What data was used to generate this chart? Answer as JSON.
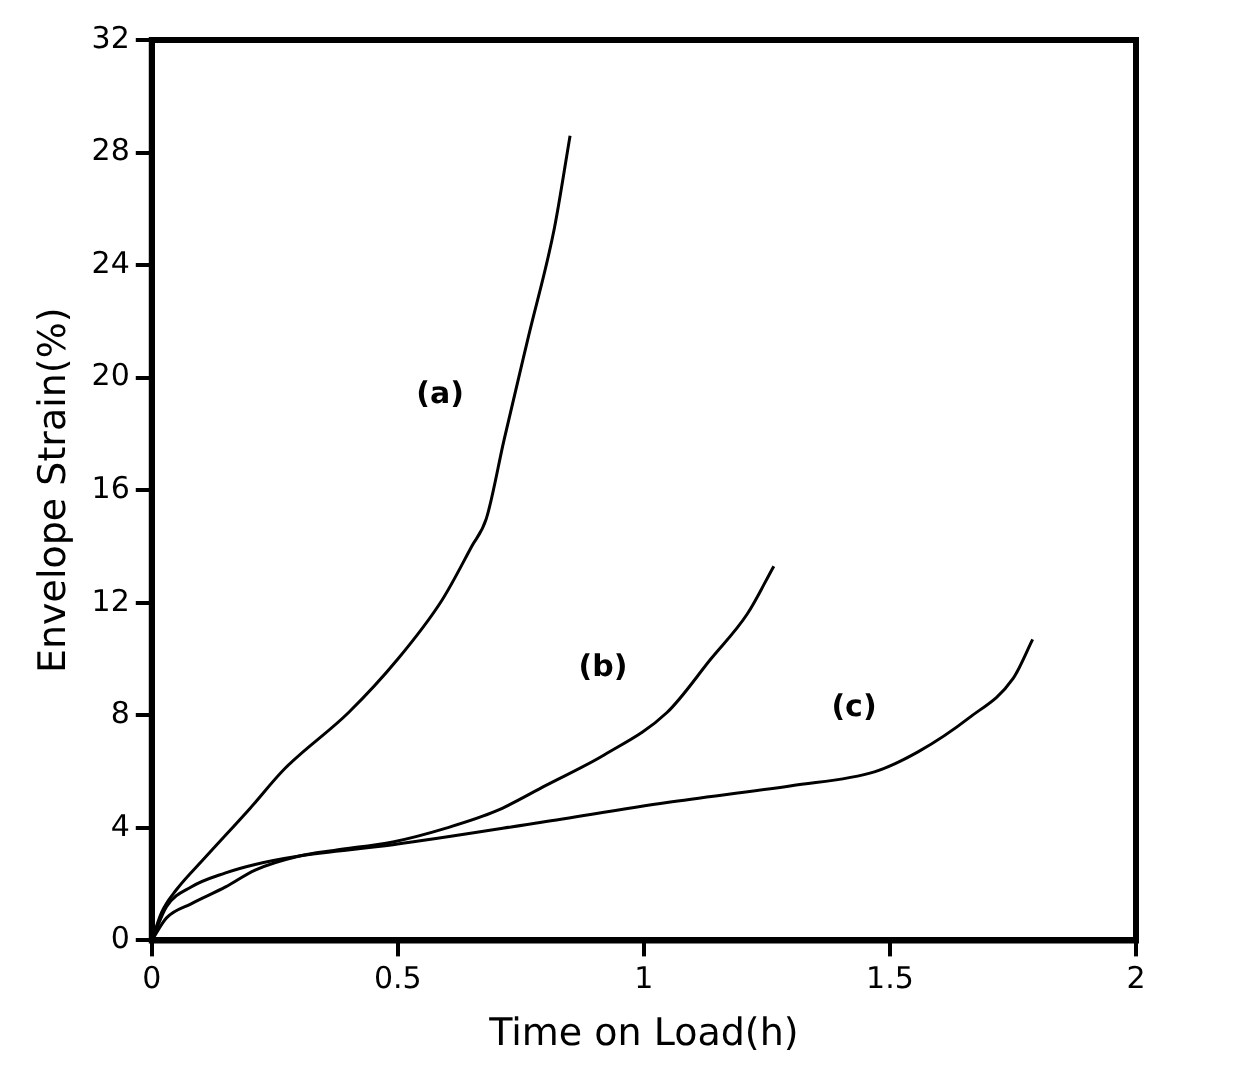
{
  "chart_data": {
    "type": "line",
    "xlabel": "Time on Load(h)",
    "ylabel": "Envelope Strain(%)",
    "xlim": [
      0,
      2
    ],
    "xticks": [
      0,
      0.5,
      1,
      1.5,
      2
    ],
    "ylim": [
      0,
      32
    ],
    "yticks": [
      0,
      4,
      8,
      12,
      16,
      20,
      24,
      28,
      32
    ],
    "grid": false,
    "legend": false,
    "marker": "none",
    "line_style": "solid",
    "series": [
      {
        "name": "(a)",
        "color": "#000000",
        "x": [
          0,
          0.02,
          0.05,
          0.106,
          0.2,
          0.27,
          0.4,
          0.5,
          0.59,
          0.65,
          0.68,
          0.716,
          0.766,
          0.818,
          0.85
        ],
        "values": [
          0,
          1.0,
          1.8,
          2.9,
          4.7,
          6.1,
          8.1,
          10,
          12.1,
          14,
          15,
          17.8,
          21.5,
          25.3,
          28.6
        ]
      },
      {
        "name": "(b)",
        "color": "#000000",
        "x": [
          0,
          0.03,
          0.08,
          0.15,
          0.21,
          0.3,
          0.37,
          0.49,
          0.6,
          0.7,
          0.8,
          0.92,
          1.047,
          1.136,
          1.21,
          1.264
        ],
        "values": [
          0,
          0.8,
          1.3,
          1.9,
          2.5,
          3.0,
          3.2,
          3.5,
          4.0,
          4.6,
          5.5,
          6.6,
          8.1,
          10,
          11.6,
          13.3
        ]
      },
      {
        "name": "(c)",
        "color": "#000000",
        "x": [
          0,
          0.03,
          0.08,
          0.15,
          0.21,
          0.3,
          0.49,
          0.792,
          1.047,
          1.3,
          1.47,
          1.557,
          1.66,
          1.75,
          1.79
        ],
        "values": [
          0,
          1.2,
          1.9,
          2.4,
          2.7,
          3.0,
          3.4,
          4.2,
          4.9,
          5.5,
          6.0,
          6.7,
          7.9,
          9.3,
          10.7
        ]
      }
    ]
  }
}
